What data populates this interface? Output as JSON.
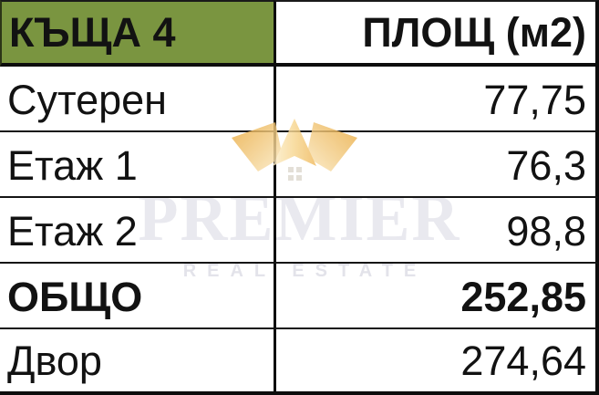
{
  "table": {
    "header": {
      "house_title": "КЪЩА 4",
      "area_column": "ПЛОЩ (м2)"
    },
    "rows": [
      {
        "label": "Сутерен",
        "value": "77,75",
        "bold": false
      },
      {
        "label": "Етаж 1",
        "value": "76,3",
        "bold": false
      },
      {
        "label": "Етаж 2",
        "value": "98,8",
        "bold": false
      },
      {
        "label": "ОБЩО",
        "value": "252,85",
        "bold": true
      },
      {
        "label": "Двор",
        "value": "274,64",
        "bold": false
      }
    ]
  },
  "watermark": {
    "brand": "PREMIER",
    "tagline": "REAL ESTATE",
    "icon": "crown-roof-icon"
  },
  "colors": {
    "header_green": "#7a9540",
    "border_black": "#0d0d0d",
    "gold_dark": "#e9a93c",
    "gold_mid": "#f3c266",
    "gold_light": "#fbe9c1",
    "watermark_text": "#e9e9ef",
    "watermark_tagline": "#e3e3ea",
    "window_gray": "#c9beb0"
  }
}
